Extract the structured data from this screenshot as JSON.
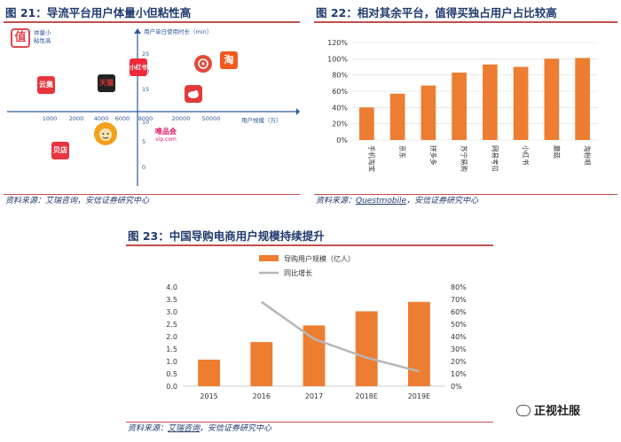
{
  "fig21": {
    "title": "图 21：导流平台用户体量小但粘性高",
    "source": "资料来源：艾瑞咨询，安信证券研究中心",
    "y_axis_label": "用户单日使用时长（min）",
    "x_axis_label": "用户规模（万）",
    "corner_label": "体量小\n粘性高",
    "x_ticks": [
      "1000",
      "2000",
      "4000",
      "6000",
      "8000",
      "20000",
      "50000"
    ],
    "y_ticks": [
      "25",
      "20",
      "15",
      "10",
      "5",
      "0"
    ],
    "apps": [
      {
        "name": "值",
        "color": "#e0464c"
      },
      {
        "name": "云集",
        "color": "#e9343c"
      },
      {
        "name": "天猫",
        "color": "#d72b2b"
      },
      {
        "name": "小红书",
        "color": "#ee2a3a"
      },
      {
        "name": "拼多多",
        "color": "#e34b3a"
      },
      {
        "name": "淘",
        "color": "#f25a1f"
      },
      {
        "name": "苏宁",
        "color": "#f2a11a"
      },
      {
        "name": "贝店",
        "color": "#e8353f"
      },
      {
        "name": "唯品会",
        "color": "#d9196b"
      },
      {
        "name": "京东",
        "color": "#e23a3a"
      }
    ],
    "vip_label": "唯品会",
    "vip_sub": "vip.com",
    "shop_label": "贝店",
    "tmall_label": "天猫",
    "yunji_label": "云集",
    "xhs_label": "小红书",
    "taobao_label": "淘"
  },
  "fig22": {
    "title": "图 22：相对其余平台，值得买独占用户占比较高",
    "source_prefix": "资料来源：",
    "source_link": "Questmobile",
    "source_suffix": "，安信证券研究中心",
    "chart_data": {
      "type": "bar",
      "categories": [
        "手机淘宝",
        "京东",
        "拼多多",
        "苏宁易购",
        "网易考拉",
        "小红书",
        "蘑菇",
        "淘粉吧"
      ],
      "values": [
        40,
        57,
        67,
        83,
        93,
        90,
        100,
        101
      ],
      "ylim": [
        0,
        120
      ],
      "yticks": [
        "0%",
        "20%",
        "40%",
        "60%",
        "80%",
        "100%",
        "120%"
      ],
      "color": "#ed7d31"
    }
  },
  "fig23": {
    "title": "图 23：中国导购电商用户规模持续提升",
    "source_prefix": "资料来源：",
    "source_link": "艾瑞咨询",
    "source_suffix": "，安信证券研究中心",
    "chart_data": {
      "type": "bar",
      "categories": [
        "2015",
        "2016",
        "2017",
        "2018E",
        "2019E"
      ],
      "series": [
        {
          "name": "导购用户规模（亿人）",
          "values": [
            1.07,
            1.78,
            2.45,
            3.02,
            3.4
          ],
          "color": "#ed7d31"
        },
        {
          "name": "同比增长",
          "values": [
            null,
            68,
            38,
            23,
            12
          ],
          "color": "#b7b7b7",
          "axis": "right"
        }
      ],
      "ylim": [
        0,
        4.0
      ],
      "yticks": [
        "0.0",
        "0.5",
        "1.0",
        "1.5",
        "2.0",
        "2.5",
        "3.0",
        "3.5",
        "4.0"
      ],
      "y2lim": [
        0,
        80
      ],
      "y2ticks": [
        "0%",
        "10%",
        "20%",
        "30%",
        "40%",
        "50%",
        "60%",
        "70%",
        "80%"
      ]
    }
  },
  "watermark": "正视社服"
}
